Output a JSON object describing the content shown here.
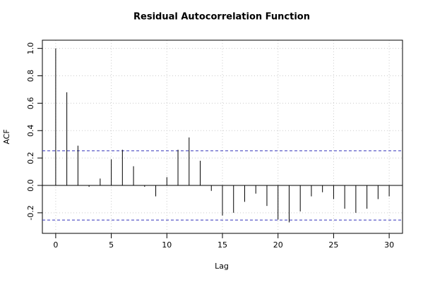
{
  "chart_data": {
    "type": "acf",
    "title": "Residual Autocorrelation Function",
    "x_label": "Lag",
    "y_label": "ACF",
    "x": [
      0,
      1,
      2,
      3,
      4,
      5,
      6,
      7,
      8,
      9,
      10,
      11,
      12,
      13,
      14,
      15,
      16,
      17,
      18,
      19,
      20,
      21,
      22,
      23,
      24,
      25,
      26,
      27,
      28,
      29,
      30
    ],
    "values": [
      1.0,
      0.68,
      0.29,
      -0.01,
      0.05,
      0.19,
      0.26,
      0.14,
      -0.01,
      -0.08,
      0.06,
      0.26,
      0.35,
      0.18,
      -0.04,
      -0.22,
      -0.2,
      -0.12,
      -0.06,
      -0.15,
      -0.25,
      -0.27,
      -0.19,
      -0.08,
      -0.05,
      -0.1,
      -0.17,
      -0.2,
      -0.17,
      -0.1,
      -0.08
    ],
    "color": "#000000",
    "conf_limits": [
      0.253,
      -0.253
    ],
    "conf_color": "#3333bb",
    "xlim": [
      -1.2,
      31.2
    ],
    "ylim": [
      -0.35,
      1.06
    ],
    "xticks": [
      0,
      5,
      10,
      15,
      20,
      25,
      30
    ],
    "yticks": [
      -0.2,
      {
        "value": 0,
        "label": "0.0"
      },
      0.2,
      0.4,
      0.6,
      0.8,
      {
        "value": 1,
        "label": "1.0"
      }
    ],
    "grid": true
  }
}
